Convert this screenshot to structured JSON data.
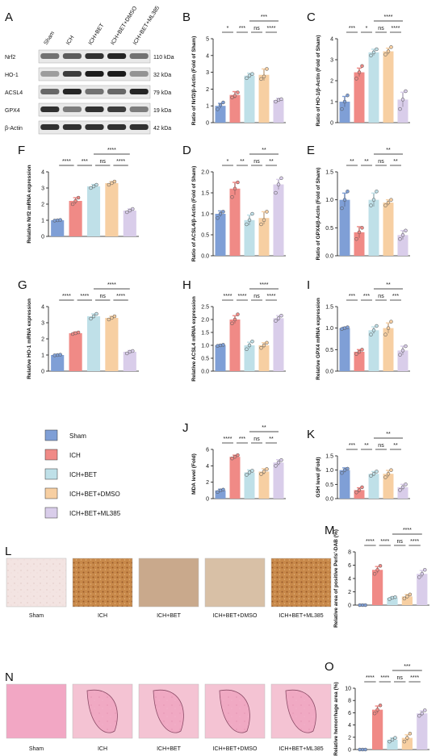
{
  "colors": {
    "Sham": "#7f9fd6",
    "ICH": "#f08a86",
    "ICH+BET": "#bfe0e8",
    "ICH+BET+DMSO": "#f7cfa2",
    "ICH+BET+ML385": "#d9cdea"
  },
  "legend": {
    "items": [
      "Sham",
      "ICH",
      "ICH+BET",
      "ICH+BET+DMSO",
      "ICH+BET+ML385"
    ]
  },
  "blot": {
    "label": "A",
    "lanes": [
      "Sham",
      "ICH",
      "ICH+BET",
      "ICH+BET+DMSO",
      "ICH+BET+ML385"
    ],
    "rows": [
      {
        "name": "Nrf2",
        "kda": "110 kDa"
      },
      {
        "name": "HO-1",
        "kda": "32 kDa"
      },
      {
        "name": "ACSL4",
        "kda": "79 kDa"
      },
      {
        "name": "GPX4",
        "kda": "19 kDa"
      },
      {
        "name": "β-Actin",
        "kda": "42 kDa"
      }
    ]
  },
  "histology": [
    {
      "label": "L",
      "captions": [
        "Sham",
        "ICH",
        "ICH+BET",
        "ICH+BET+DMSO",
        "ICH+BET+ML385"
      ]
    },
    {
      "label": "N",
      "captions": [
        "Sham",
        "ICH",
        "ICH+BET",
        "ICH+BET+DMSO",
        "ICH+BET+ML385"
      ]
    }
  ],
  "chart_data": [
    {
      "label": "B",
      "type": "bar",
      "ylabel": "Ratio of Nrf2/β-Actin (Fold of Sham)",
      "ylim": [
        0,
        5
      ],
      "yticks": [
        0,
        1,
        2,
        3,
        4,
        5
      ],
      "categories": [
        "Sham",
        "ICH",
        "ICH+BET",
        "ICH+BET+DMSO",
        "ICH+BET+ML385"
      ],
      "values": [
        1.0,
        1.65,
        2.8,
        2.85,
        1.35
      ],
      "errors": [
        0.15,
        0.2,
        0.15,
        0.35,
        0.1
      ],
      "points": [
        [
          0.8,
          1.05,
          1.2
        ],
        [
          1.5,
          1.6,
          1.8
        ],
        [
          2.65,
          2.8,
          2.9
        ],
        [
          2.6,
          2.75,
          3.2
        ],
        [
          1.25,
          1.35,
          1.4
        ]
      ],
      "significance": [
        "*",
        "***",
        "ns",
        "****",
        "***"
      ]
    },
    {
      "label": "C",
      "type": "bar",
      "ylabel": "Ratio of HO-1/β-Actin (Fold of Sham)",
      "ylim": [
        0,
        4
      ],
      "yticks": [
        0,
        1,
        2,
        3,
        4
      ],
      "categories": [
        "Sham",
        "ICH",
        "ICH+BET",
        "ICH+BET+DMSO",
        "ICH+BET+ML385"
      ],
      "values": [
        1.0,
        2.4,
        3.35,
        3.4,
        1.1
      ],
      "errors": [
        0.25,
        0.2,
        0.15,
        0.15,
        0.35
      ],
      "points": [
        [
          0.65,
          1.0,
          1.3
        ],
        [
          2.1,
          2.4,
          2.7
        ],
        [
          3.2,
          3.35,
          3.5
        ],
        [
          3.25,
          3.4,
          3.6
        ],
        [
          0.65,
          1.1,
          1.5
        ]
      ],
      "significance": [
        "***",
        "*",
        "ns",
        "****",
        "****"
      ]
    },
    {
      "label": "F",
      "type": "bar",
      "ylabel": "Relative Nrf2 mRNA expression",
      "ylim": [
        0,
        4
      ],
      "yticks": [
        0,
        1,
        2,
        3,
        4
      ],
      "categories": [
        "Sham",
        "ICH",
        "ICH+BET",
        "ICH+BET+DMSO",
        "ICH+BET+ML385"
      ],
      "values": [
        1.0,
        2.2,
        3.1,
        3.3,
        1.6
      ],
      "errors": [
        0.02,
        0.2,
        0.12,
        0.1,
        0.1
      ],
      "points": [
        [
          0.98,
          1.0,
          1.02
        ],
        [
          2.0,
          2.2,
          2.4
        ],
        [
          3.0,
          3.1,
          3.2
        ],
        [
          3.2,
          3.3,
          3.4
        ],
        [
          1.5,
          1.6,
          1.7
        ]
      ],
      "significance": [
        "****",
        "***",
        "ns",
        "****",
        "****"
      ]
    },
    {
      "label": "D",
      "type": "bar",
      "ylabel": "Ratio of ACSL4/β-Actin (Fold of Sham)",
      "ylim": [
        0,
        2.0
      ],
      "yticks": [
        0.0,
        0.5,
        1.0,
        1.5,
        2.0
      ],
      "categories": [
        "Sham",
        "ICH",
        "ICH+BET",
        "ICH+BET+DMSO",
        "ICH+BET+ML385"
      ],
      "values": [
        1.0,
        1.6,
        0.85,
        0.9,
        1.7
      ],
      "errors": [
        0.07,
        0.15,
        0.12,
        0.15,
        0.12
      ],
      "points": [
        [
          0.9,
          1.0,
          1.05
        ],
        [
          1.4,
          1.6,
          1.75
        ],
        [
          0.75,
          0.85,
          1.0
        ],
        [
          0.75,
          0.85,
          1.05
        ],
        [
          1.5,
          1.7,
          1.85
        ]
      ],
      "significance": [
        "*",
        "**",
        "ns",
        "**",
        "**"
      ]
    },
    {
      "label": "E",
      "type": "bar",
      "ylabel": "Ratio of GPX4/β-Actin (Fold of Sham)",
      "ylim": [
        0,
        1.5
      ],
      "yticks": [
        0.0,
        0.5,
        1.0,
        1.5
      ],
      "categories": [
        "Sham",
        "ICH",
        "ICH+BET",
        "ICH+BET+DMSO",
        "ICH+BET+ML385"
      ],
      "values": [
        1.0,
        0.42,
        1.0,
        0.95,
        0.37
      ],
      "errors": [
        0.12,
        0.1,
        0.12,
        0.05,
        0.08
      ],
      "points": [
        [
          0.85,
          1.0,
          1.15
        ],
        [
          0.3,
          0.42,
          0.5
        ],
        [
          0.9,
          1.0,
          1.15
        ],
        [
          0.9,
          0.95,
          1.0
        ],
        [
          0.3,
          0.37,
          0.45
        ]
      ],
      "significance": [
        "**",
        "**",
        "ns",
        "**",
        "**"
      ]
    },
    {
      "label": "G",
      "type": "bar",
      "ylabel": "Relative HO-1 mRNA expression",
      "ylim": [
        0,
        4
      ],
      "yticks": [
        0,
        1,
        2,
        3,
        4
      ],
      "categories": [
        "Sham",
        "ICH",
        "ICH+BET",
        "ICH+BET+DMSO",
        "ICH+BET+ML385"
      ],
      "values": [
        1.0,
        2.35,
        3.4,
        3.3,
        1.2
      ],
      "errors": [
        0.02,
        0.08,
        0.15,
        0.1,
        0.08
      ],
      "points": [
        [
          0.98,
          1.0,
          1.02
        ],
        [
          2.3,
          2.35,
          2.4
        ],
        [
          3.25,
          3.4,
          3.55
        ],
        [
          3.2,
          3.3,
          3.4
        ],
        [
          1.1,
          1.2,
          1.25
        ]
      ],
      "significance": [
        "****",
        "****",
        "ns",
        "****",
        "****"
      ]
    },
    {
      "label": "H",
      "type": "bar",
      "ylabel": "Relative ACSL4 mRNA expression",
      "ylim": [
        0,
        2.5
      ],
      "yticks": [
        0.0,
        0.5,
        1.0,
        1.5,
        2.0,
        2.5
      ],
      "categories": [
        "Sham",
        "ICH",
        "ICH+BET",
        "ICH+BET+DMSO",
        "ICH+BET+ML385"
      ],
      "values": [
        1.0,
        2.0,
        1.0,
        1.0,
        2.05
      ],
      "errors": [
        0.02,
        0.15,
        0.12,
        0.1,
        0.1
      ],
      "points": [
        [
          0.98,
          1.0,
          1.02
        ],
        [
          1.85,
          2.0,
          2.2
        ],
        [
          0.85,
          1.0,
          1.15
        ],
        [
          0.9,
          1.0,
          1.1
        ],
        [
          1.95,
          2.05,
          2.15
        ]
      ],
      "significance": [
        "****",
        "****",
        "ns",
        "****",
        "****"
      ]
    },
    {
      "label": "I",
      "type": "bar",
      "ylabel": "Relative GPX4 mRNA expression",
      "ylim": [
        0,
        1.5
      ],
      "yticks": [
        0.0,
        0.5,
        1.0,
        1.5
      ],
      "categories": [
        "Sham",
        "ICH",
        "ICH+BET",
        "ICH+BET+DMSO",
        "ICH+BET+ML385"
      ],
      "values": [
        1.0,
        0.45,
        0.95,
        1.0,
        0.48
      ],
      "errors": [
        0.02,
        0.05,
        0.08,
        0.12,
        0.1
      ],
      "points": [
        [
          0.98,
          1.0,
          1.02
        ],
        [
          0.4,
          0.45,
          0.5
        ],
        [
          0.85,
          0.95,
          1.05
        ],
        [
          0.85,
          1.0,
          1.15
        ],
        [
          0.38,
          0.48,
          0.58
        ]
      ],
      "significance": [
        "***",
        "***",
        "ns",
        "***",
        "**"
      ]
    },
    {
      "label": "J",
      "type": "bar",
      "ylabel": "MDA level (Fold)",
      "ylim": [
        0,
        6
      ],
      "yticks": [
        0,
        2,
        4,
        6
      ],
      "categories": [
        "Sham",
        "ICH",
        "ICH+BET",
        "ICH+BET+DMSO",
        "ICH+BET+ML385"
      ],
      "values": [
        1.0,
        5.1,
        3.2,
        3.3,
        4.4
      ],
      "errors": [
        0.15,
        0.2,
        0.3,
        0.35,
        0.35
      ],
      "points": [
        [
          0.8,
          1.0,
          1.1
        ],
        [
          4.9,
          5.1,
          5.3
        ],
        [
          2.9,
          3.2,
          3.4
        ],
        [
          3.0,
          3.3,
          3.6
        ],
        [
          4.0,
          4.4,
          4.7
        ]
      ],
      "significance": [
        "****",
        "***",
        "ns",
        "**",
        "**"
      ]
    },
    {
      "label": "K",
      "type": "bar",
      "ylabel": "GSH level (Fold)",
      "ylim": [
        0,
        1.5
      ],
      "yticks": [
        0.0,
        0.5,
        1.0,
        1.5
      ],
      "categories": [
        "Sham",
        "ICH",
        "ICH+BET",
        "ICH+BET+DMSO",
        "ICH+BET+ML385"
      ],
      "values": [
        1.0,
        0.3,
        0.87,
        0.87,
        0.4
      ],
      "errors": [
        0.08,
        0.08,
        0.08,
        0.12,
        0.1
      ],
      "points": [
        [
          0.9,
          1.0,
          1.05
        ],
        [
          0.22,
          0.3,
          0.4
        ],
        [
          0.8,
          0.87,
          0.95
        ],
        [
          0.75,
          0.87,
          1.0
        ],
        [
          0.3,
          0.4,
          0.5
        ]
      ],
      "significance": [
        "***",
        "**",
        "ns",
        "**",
        "**"
      ]
    },
    {
      "label": "M",
      "type": "bar",
      "ylabel": "Relative area of positive Perls'-DAB (%)",
      "ylim": [
        0,
        8
      ],
      "yticks": [
        0,
        2,
        4,
        6,
        8
      ],
      "categories": [
        "Sham",
        "ICH",
        "ICH+BET",
        "ICH+BET+DMSO",
        "ICH+BET+ML385"
      ],
      "values": [
        0.0,
        5.3,
        1.1,
        1.3,
        4.7
      ],
      "errors": [
        0.0,
        0.5,
        0.15,
        0.3,
        0.5
      ],
      "points": [
        [
          0.0,
          0.0,
          0.0
        ],
        [
          4.7,
          5.3,
          5.9
        ],
        [
          0.9,
          1.1,
          1.2
        ],
        [
          1.0,
          1.3,
          1.6
        ],
        [
          4.2,
          4.7,
          5.3
        ]
      ],
      "significance": [
        "****",
        "****",
        "ns",
        "****",
        "****"
      ]
    },
    {
      "label": "O",
      "type": "bar",
      "ylabel": "Relative hemorrhage area (%)",
      "ylim": [
        0,
        10
      ],
      "yticks": [
        0,
        2,
        4,
        6,
        8,
        10
      ],
      "categories": [
        "Sham",
        "ICH",
        "ICH+BET",
        "ICH+BET+DMSO",
        "ICH+BET+ML385"
      ],
      "values": [
        0.0,
        6.5,
        1.6,
        1.9,
        5.9
      ],
      "errors": [
        0.0,
        0.6,
        0.3,
        0.5,
        0.4
      ],
      "points": [
        [
          0.0,
          0.0,
          0.0
        ],
        [
          5.9,
          6.5,
          7.2
        ],
        [
          1.3,
          1.6,
          1.9
        ],
        [
          1.3,
          1.9,
          2.6
        ],
        [
          5.5,
          5.9,
          6.4
        ]
      ],
      "significance": [
        "****",
        "****",
        "ns",
        "****",
        "***"
      ]
    }
  ]
}
